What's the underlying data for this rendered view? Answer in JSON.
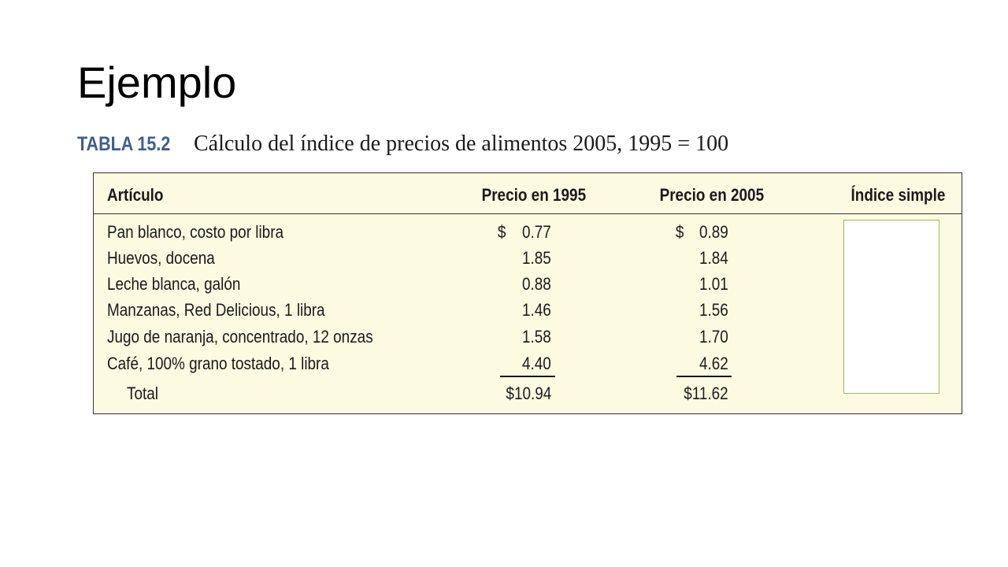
{
  "slide": {
    "title": "Ejemplo"
  },
  "table": {
    "label": "TABLA 15.2",
    "caption": "Cálculo del índice de precios de alimentos 2005, 1995 = 100",
    "headers": {
      "item": "Artículo",
      "price_1995": "Precio en 1995",
      "price_2005": "Precio en 2005",
      "simple_index": "Índice simple"
    },
    "currency_symbol": "$",
    "rows": [
      {
        "item": "Pan blanco, costo por libra",
        "price_1995": "0.77",
        "price_2005": "0.89"
      },
      {
        "item": "Huevos, docena",
        "price_1995": "1.85",
        "price_2005": "1.84"
      },
      {
        "item": "Leche blanca, galón",
        "price_1995": "0.88",
        "price_2005": "1.01"
      },
      {
        "item": "Manzanas, Red Delicious, 1 libra",
        "price_1995": "1.46",
        "price_2005": "1.56"
      },
      {
        "item": "Jugo de naranja, concentrado, 12 onzas",
        "price_1995": "1.58",
        "price_2005": "1.70"
      },
      {
        "item": "Café, 100% grano tostado, 1 libra",
        "price_1995": "4.40",
        "price_2005": "4.62"
      }
    ],
    "total": {
      "label": "Total",
      "price_1995": "$10.94",
      "price_2005": "$11.62"
    },
    "colors": {
      "panel_background": "#fdfae2",
      "label_blue": "#3f5f8a",
      "answer_box_border": "#9bbb59"
    }
  }
}
